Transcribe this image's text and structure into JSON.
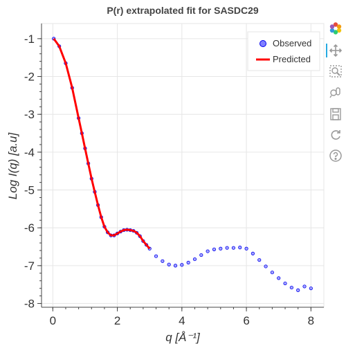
{
  "toolbar": {
    "tools": [
      "bokeh-logo-icon",
      "pan-icon",
      "box-zoom-icon",
      "wheel-zoom-icon",
      "save-icon",
      "reset-icon",
      "help-icon"
    ]
  },
  "chart_data": {
    "type": "scatter",
    "title": "P(r) extrapolated fit for SASDC29",
    "xlabel": "q [Å⁻¹]",
    "ylabel": "Log I(q) [a.u]",
    "xlim": [
      -0.35,
      8.4
    ],
    "ylim": [
      -8.1,
      -0.6
    ],
    "xticks": [
      0,
      2,
      4,
      6,
      8
    ],
    "yticks": [
      -1,
      -2,
      -3,
      -4,
      -5,
      -6,
      -7,
      -8
    ],
    "grid": true,
    "legend_position": "top-right",
    "legend": [
      {
        "label": "Observed",
        "marker": "circle"
      },
      {
        "label": "Predicted",
        "marker": "line"
      }
    ],
    "colors": {
      "observed_fill": "#8080ff",
      "observed_stroke": "#0000ee",
      "predicted": "#ff0000",
      "grid": "#e6e6e6"
    },
    "series": [
      {
        "name": "Observed",
        "kind": "scatter",
        "x": [
          0.03,
          0.2,
          0.4,
          0.6,
          0.8,
          0.9,
          1.0,
          1.1,
          1.2,
          1.3,
          1.4,
          1.5,
          1.6,
          1.7,
          1.8,
          1.9,
          2.0,
          2.1,
          2.2,
          2.3,
          2.4,
          2.5,
          2.6,
          2.7,
          2.8,
          2.9,
          3.0,
          3.2,
          3.4,
          3.6,
          3.8,
          4.0,
          4.2,
          4.4,
          4.6,
          4.8,
          5.0,
          5.2,
          5.4,
          5.6,
          5.8,
          6.0,
          6.2,
          6.4,
          6.6,
          6.8,
          7.0,
          7.2,
          7.4,
          7.6,
          7.8,
          8.0
        ],
        "y": [
          -1.0,
          -1.2,
          -1.65,
          -2.3,
          -3.1,
          -3.5,
          -3.9,
          -4.3,
          -4.7,
          -5.05,
          -5.4,
          -5.72,
          -5.97,
          -6.12,
          -6.2,
          -6.2,
          -6.15,
          -6.1,
          -6.06,
          -6.05,
          -6.06,
          -6.08,
          -6.13,
          -6.22,
          -6.35,
          -6.45,
          -6.55,
          -6.75,
          -6.88,
          -6.97,
          -7.0,
          -6.98,
          -6.92,
          -6.83,
          -6.72,
          -6.62,
          -6.57,
          -6.55,
          -6.53,
          -6.53,
          -6.52,
          -6.55,
          -6.68,
          -6.85,
          -7.02,
          -7.18,
          -7.33,
          -7.47,
          -7.58,
          -7.65,
          -7.55,
          -7.6
        ]
      },
      {
        "name": "Predicted",
        "kind": "line",
        "x": [
          0.03,
          0.2,
          0.4,
          0.6,
          0.8,
          0.9,
          1.0,
          1.1,
          1.2,
          1.3,
          1.4,
          1.5,
          1.6,
          1.7,
          1.8,
          1.9,
          2.0,
          2.1,
          2.2,
          2.3,
          2.4,
          2.5,
          2.6,
          2.7,
          2.8,
          2.9,
          3.0
        ],
        "y": [
          -1.0,
          -1.2,
          -1.65,
          -2.3,
          -3.1,
          -3.5,
          -3.9,
          -4.3,
          -4.7,
          -5.05,
          -5.4,
          -5.72,
          -5.97,
          -6.12,
          -6.2,
          -6.2,
          -6.15,
          -6.1,
          -6.06,
          -6.05,
          -6.06,
          -6.08,
          -6.13,
          -6.22,
          -6.35,
          -6.45,
          -6.55
        ]
      }
    ]
  }
}
